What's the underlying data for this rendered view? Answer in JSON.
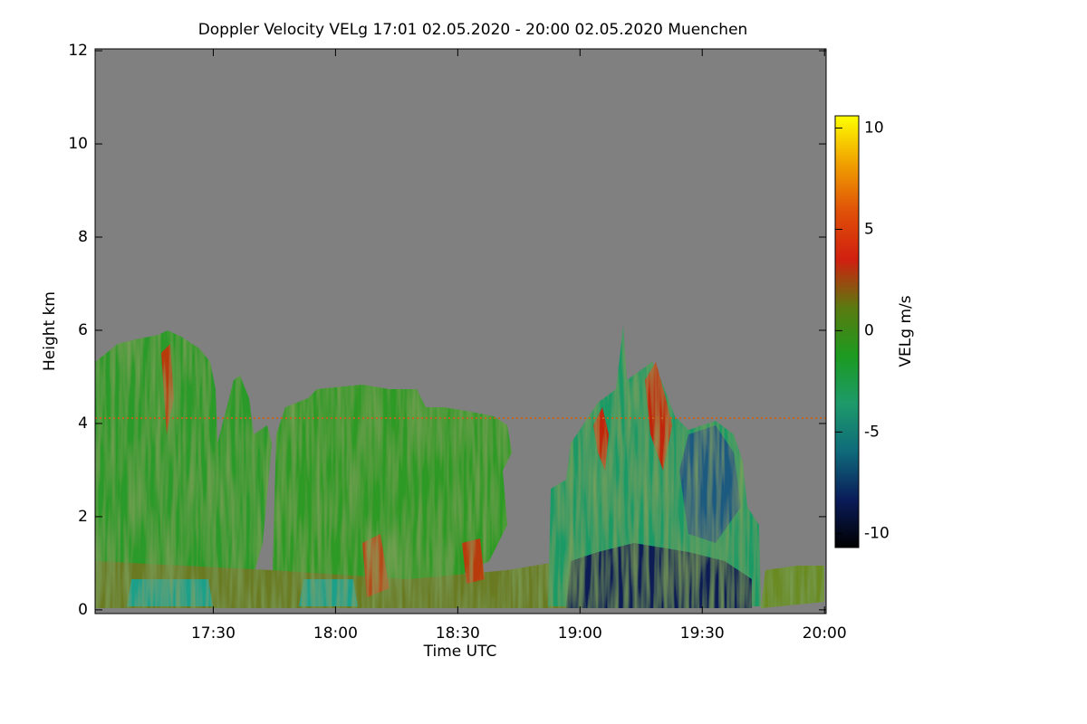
{
  "chart_data": {
    "type": "heatmap",
    "title": "Doppler Velocity VELg   17:01 02.05.2020 - 20:00 02.05.2020 Muenchen",
    "x_label": "Time UTC",
    "y_label": "Height km",
    "colorbar_label": "VELg m/s",
    "xlim": [
      1021,
      1200.4
    ],
    "xticks": [
      {
        "value": 1050,
        "label": "17:30"
      },
      {
        "value": 1080,
        "label": "18:00"
      },
      {
        "value": 1110,
        "label": "18:30"
      },
      {
        "value": 1140,
        "label": "19:00"
      },
      {
        "value": 1170,
        "label": "19:30"
      },
      {
        "value": 1200,
        "label": "20:00"
      }
    ],
    "ylim": [
      -0.08,
      12.04
    ],
    "yticks": [
      0,
      2,
      4,
      6,
      8,
      10,
      12
    ],
    "clim": [
      -10.7,
      10.6
    ],
    "cticks": [
      -10,
      -5,
      0,
      5,
      10
    ],
    "colormap": [
      "#000000",
      "#0a1c5a",
      "#0f6a7a",
      "#1d9a6a",
      "#1c9a20",
      "#5a7a10",
      "#d02010",
      "#e05008",
      "#f0a000",
      "#ffff00"
    ]
  }
}
